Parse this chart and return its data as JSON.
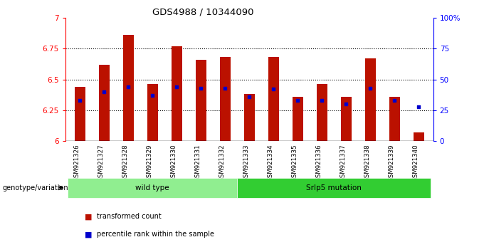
{
  "title": "GDS4988 / 10344090",
  "samples": [
    "GSM921326",
    "GSM921327",
    "GSM921328",
    "GSM921329",
    "GSM921330",
    "GSM921331",
    "GSM921332",
    "GSM921333",
    "GSM921334",
    "GSM921335",
    "GSM921336",
    "GSM921337",
    "GSM921338",
    "GSM921339",
    "GSM921340"
  ],
  "red_values": [
    6.44,
    6.62,
    6.86,
    6.46,
    6.77,
    6.66,
    6.68,
    6.38,
    6.68,
    6.36,
    6.46,
    6.36,
    6.67,
    6.36,
    6.07
  ],
  "blue_values_pct": [
    33,
    40,
    44,
    37,
    44,
    43,
    43,
    36,
    42,
    33,
    33,
    30,
    43,
    33,
    28
  ],
  "ylim": [
    6.0,
    7.0
  ],
  "yticks": [
    6.0,
    6.25,
    6.5,
    6.75,
    7.0
  ],
  "ytick_labels": [
    "6",
    "6.25",
    "6.5",
    "6.75",
    "7"
  ],
  "right_yticks_pct": [
    0,
    25,
    50,
    75,
    100
  ],
  "right_ytick_labels": [
    "0",
    "25",
    "50",
    "75",
    "100%"
  ],
  "groups": [
    {
      "label": "wild type",
      "start": 0,
      "end": 7,
      "color": "#90EE90"
    },
    {
      "label": "Srlp5 mutation",
      "start": 7,
      "end": 15,
      "color": "#32CD32"
    }
  ],
  "bar_color": "#BB1100",
  "dot_color": "#0000CC",
  "base": 6.0,
  "bar_width": 0.45,
  "plot_bg": "#FFFFFF",
  "xticklabel_bg": "#C8C8C8",
  "legend_items": [
    {
      "label": "transformed count",
      "color": "#BB1100"
    },
    {
      "label": "percentile rank within the sample",
      "color": "#0000CC"
    }
  ],
  "grid_lines": [
    6.25,
    6.5,
    6.75
  ]
}
